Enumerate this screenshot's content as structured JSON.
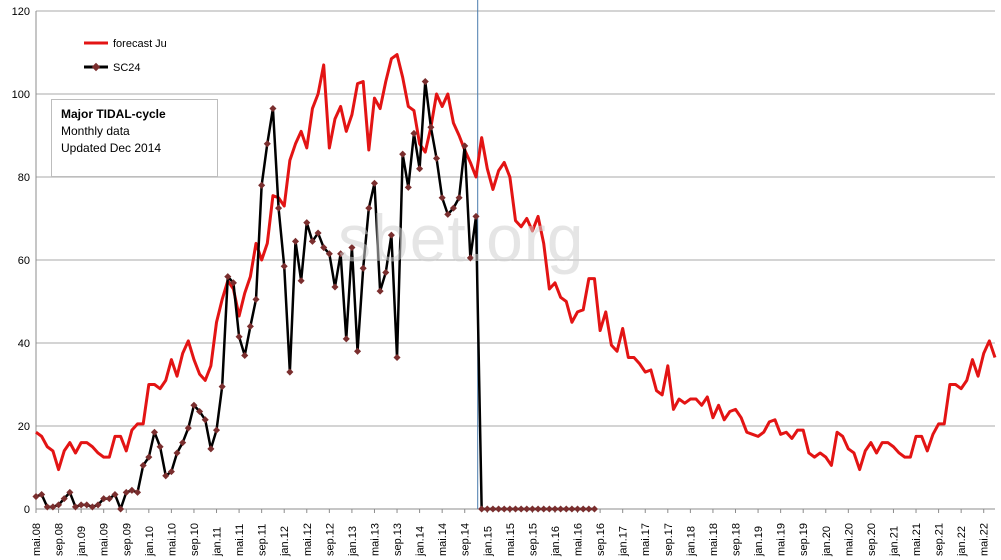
{
  "chart_data": {
    "type": "line",
    "yticks": [
      0,
      20,
      40,
      60,
      80,
      100,
      120
    ],
    "ylim": [
      0,
      120
    ],
    "x_tick_labels": [
      "mai.08",
      "sep.08",
      "jan.09",
      "mai.09",
      "sep.09",
      "jan.10",
      "mai.10",
      "sep.10",
      "jan.11",
      "mai.11",
      "sep.11",
      "jan.12",
      "mai.12",
      "sep.12",
      "jan.13",
      "mai.13",
      "sep.13",
      "jan.14",
      "mai.14",
      "sep.14",
      "jan.15",
      "mai.15",
      "sep.15",
      "jan.16",
      "mai.16",
      "sep.16",
      "jan.17",
      "mai.17",
      "sep.17",
      "jan.18",
      "mai.18",
      "sep.18",
      "jan.19",
      "mai.19",
      "sep.19",
      "jan.20",
      "mai.20",
      "sep.20",
      "jan.21",
      "mai.21",
      "sep.21",
      "jan.22",
      "mai.22"
    ],
    "months_between_ticks": 4,
    "grid": true,
    "legend_position": "top-left",
    "marker_month": "dec.14",
    "colors": {
      "forecast": "#e31414",
      "sc24": "#000000",
      "marker_line": "#4a7cad",
      "markers": "#7a2e2e"
    },
    "series": [
      {
        "name": "forecast Ju",
        "values": [
          18.5,
          17.5,
          15,
          14,
          9.5,
          14,
          16,
          13.5,
          16,
          16,
          15,
          13.5,
          12.5,
          12.5,
          17.5,
          17.5,
          14,
          19,
          20.5,
          20.5,
          30,
          30,
          29,
          31,
          36,
          32,
          37.5,
          40.5,
          36,
          32.5,
          31,
          34.5,
          45,
          50.5,
          55,
          53,
          46.5,
          52,
          56,
          64,
          60,
          64,
          75.5,
          75,
          73,
          84,
          88,
          91,
          87,
          96.5,
          100,
          107,
          87,
          94,
          97,
          91,
          95,
          102.5,
          103,
          86.5,
          99,
          96.5,
          103,
          108.5,
          109.5,
          104,
          97,
          96,
          88,
          86,
          92,
          100,
          97,
          100,
          93,
          90,
          86.5,
          83.5,
          80,
          89.5,
          82,
          77,
          81.5,
          83.5,
          80,
          69.5,
          68,
          70,
          67,
          70.5,
          64,
          53,
          54.5,
          51,
          50,
          45,
          47.5,
          48,
          55.5,
          55.5,
          43,
          47.5,
          39.5,
          38,
          43.5,
          36.5,
          36.5,
          35,
          33,
          33.5,
          28.5,
          27.5,
          34.5,
          24,
          26.5,
          25.5,
          26.5,
          26.5,
          25,
          27,
          22,
          25,
          21.5,
          23.5,
          24,
          22,
          18.5,
          18,
          17.5,
          18.5,
          21,
          21.5,
          18,
          18.5,
          17,
          19,
          19,
          13.5,
          12.5,
          13.5,
          12.5,
          10.5,
          18.5,
          17.5,
          14.5,
          13.5,
          9.5,
          14,
          16,
          13.5,
          16,
          16,
          15,
          13.5,
          12.5,
          12.5,
          17.5,
          17.5,
          14,
          18,
          20.5,
          20.5,
          30,
          30,
          29,
          31,
          36,
          32,
          37.5,
          40.5,
          36.5
        ]
      },
      {
        "name": "SC24",
        "values": [
          3,
          3.5,
          0.5,
          0.5,
          1,
          2.5,
          4,
          0.5,
          1,
          1,
          0.5,
          1,
          2.5,
          2.5,
          3.5,
          0,
          4,
          4.5,
          4,
          10.5,
          12.5,
          18.5,
          15,
          8,
          9,
          13.5,
          16,
          19.5,
          25,
          23.5,
          21.5,
          14.5,
          19,
          29.5,
          56,
          54.5,
          41.5,
          37,
          44,
          50.5,
          78,
          88,
          96.5,
          72.5,
          58.5,
          33,
          64.5,
          55,
          69,
          64.5,
          66.5,
          63,
          61.5,
          53.5,
          61.5,
          41,
          63,
          38,
          58,
          72.5,
          78.5,
          52.5,
          57,
          66,
          36.5,
          85.5,
          77.5,
          90.5,
          82,
          103,
          92,
          84.5,
          75,
          71,
          72.5,
          75,
          87.5,
          60.5,
          70.5,
          0,
          0,
          0,
          0,
          0,
          0,
          0,
          0,
          0,
          0,
          0,
          0,
          0,
          0,
          0,
          0,
          0,
          0,
          0,
          0,
          0
        ]
      }
    ]
  },
  "info_box": {
    "title": "Major TIDAL-cycle",
    "line1": "Monthly data",
    "line2": "Updated Dec 2014"
  },
  "watermark": "sbet.org"
}
